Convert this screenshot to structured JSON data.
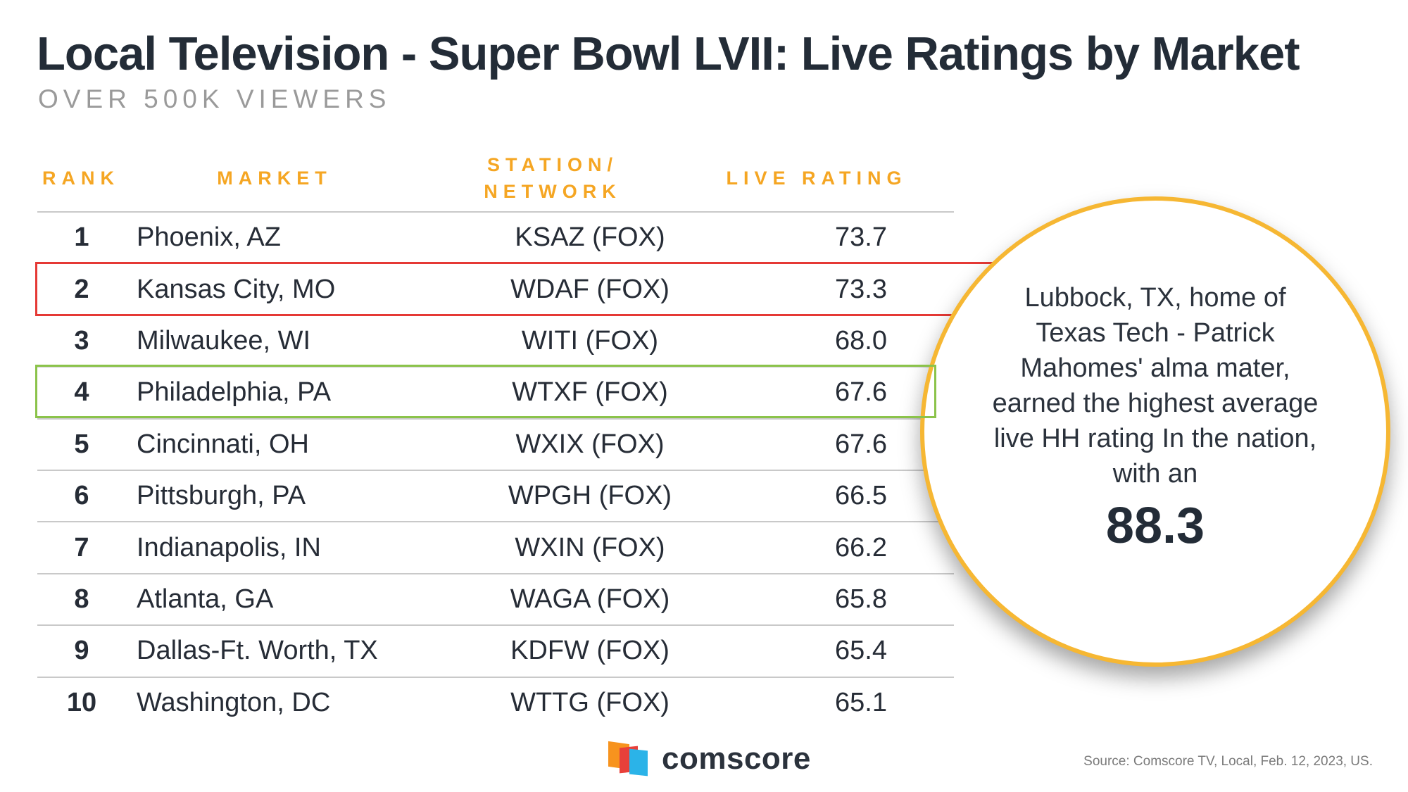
{
  "chart_data": {
    "type": "table",
    "title": "Local Television - Super Bowl LVII: Live Ratings by Market",
    "subtitle": "OVER 500K VIEWERS",
    "columns": [
      "RANK",
      "MARKET",
      "STATION/ NETWORK",
      "LIVE RATING"
    ],
    "rows": [
      {
        "rank": "1",
        "market": "Phoenix, AZ",
        "station": "KSAZ (FOX)",
        "rating": 73.7
      },
      {
        "rank": "2",
        "market": "Kansas City, MO",
        "station": "WDAF (FOX)",
        "rating": 73.3,
        "highlight": "red"
      },
      {
        "rank": "3",
        "market": "Milwaukee, WI",
        "station": "WITI (FOX)",
        "rating": 68.0
      },
      {
        "rank": "4",
        "market": "Philadelphia, PA",
        "station": "WTXF (FOX)",
        "rating": 67.6,
        "highlight": "green"
      },
      {
        "rank": "5",
        "market": "Cincinnati, OH",
        "station": "WXIX (FOX)",
        "rating": 67.6
      },
      {
        "rank": "6",
        "market": "Pittsburgh, PA",
        "station": "WPGH (FOX)",
        "rating": 66.5
      },
      {
        "rank": "7",
        "market": "Indianapolis, IN",
        "station": "WXIN (FOX)",
        "rating": 66.2
      },
      {
        "rank": "8",
        "market": "Atlanta, GA",
        "station": "WAGA (FOX)",
        "rating": 65.8
      },
      {
        "rank": "9",
        "market": "Dallas-Ft. Worth, TX",
        "station": "KDFW (FOX)",
        "rating": 65.4
      },
      {
        "rank": "10",
        "market": "Washington, DC",
        "station": "WTTG (FOX)",
        "rating": 65.1
      }
    ]
  },
  "callout": {
    "text": "Lubbock, TX, home of Texas Tech - Patrick Mahomes' alma mater, earned the highest average live HH rating In the nation, with an",
    "value": "88.3"
  },
  "footer": {
    "logo_text": "comscore",
    "source": "Source: Comscore TV, Local, Feb. 12, 2023, US."
  },
  "colors": {
    "header_accent": "#f5a623",
    "highlight_red": "#e53935",
    "highlight_green": "#8bc34a",
    "callout_border": "#f6b733"
  }
}
